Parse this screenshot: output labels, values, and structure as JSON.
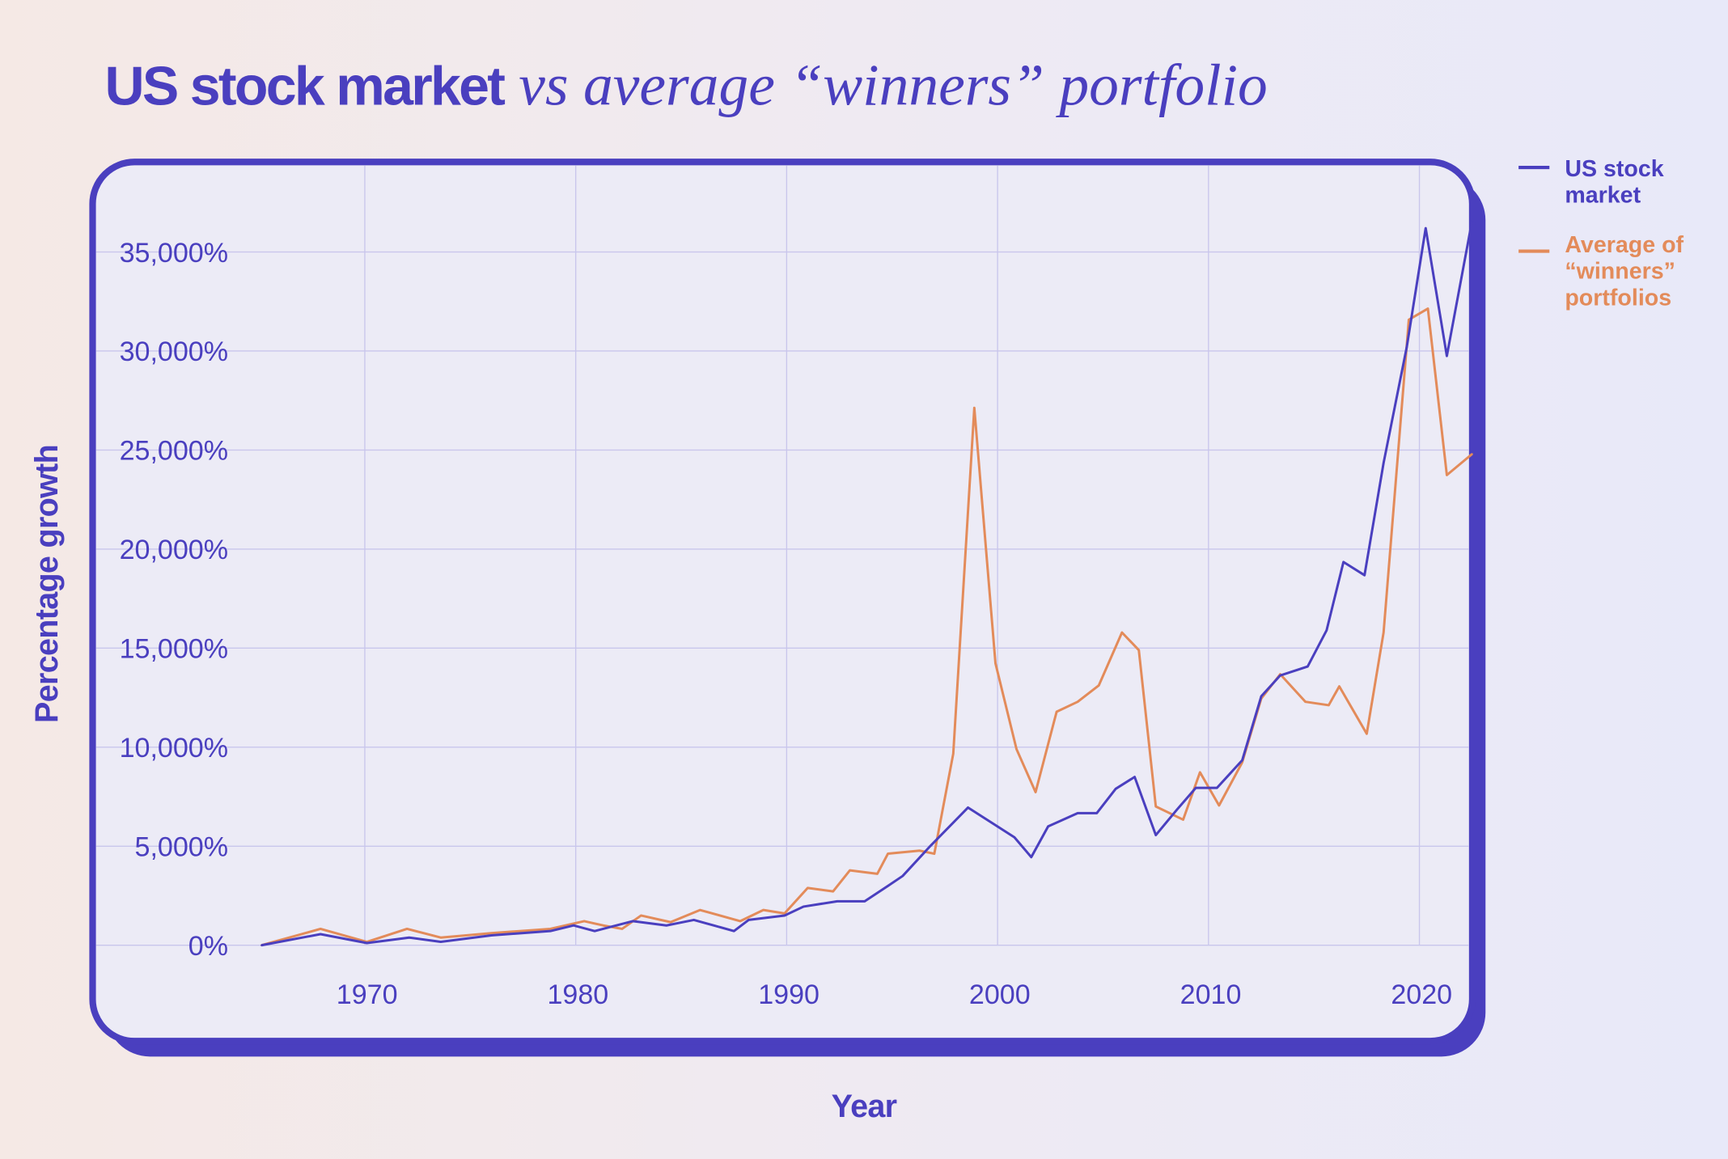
{
  "chart_data": {
    "type": "line",
    "title": "US stock market",
    "title_italic": "vs average “winners” portfolio",
    "xlabel": "Year",
    "ylabel": "Percentage growth",
    "xlim": [
      1965,
      2022.5
    ],
    "ylim": [
      0,
      37000
    ],
    "x_ticks": [
      "1970",
      "1980",
      "1990",
      "2000",
      "2010",
      "2020"
    ],
    "x_tick_values": [
      1970,
      1980,
      1990,
      2000,
      2010,
      2020
    ],
    "y_ticks": [
      "0%",
      "5,000%",
      "10,000%",
      "15,000%",
      "20,000%",
      "25,000%",
      "30,000%",
      "35,000%"
    ],
    "y_tick_values": [
      0,
      5000,
      10000,
      15000,
      20000,
      25000,
      30000,
      35000
    ],
    "grid": true,
    "legend_position": "right",
    "series": [
      {
        "name": "US stock market",
        "color": "#4a3fbf",
        "x": [
          1965.1,
          1967.9,
          1970.1,
          1972.1,
          1973.6,
          1976.0,
          1978.8,
          1979.9,
          1980.9,
          1982.7,
          1984.3,
          1985.6,
          1987.5,
          1988.2,
          1989.9,
          1990.8,
          1992.4,
          1993.7,
          1994.8,
          1995.5,
          1996.8,
          1998.6,
          2000.8,
          2001.6,
          2002.4,
          2003.8,
          2004.7,
          2005.6,
          2006.5,
          2007.5,
          2008.5,
          2009.4,
          2010.4,
          2011.6,
          2012.5,
          2013.4,
          2014.7,
          2015.6,
          2016.4,
          2017.4,
          2018.3,
          2019.4,
          2020.3,
          2021.3,
          2022.5
        ],
        "y": [
          0,
          560,
          110,
          390,
          170,
          500,
          720,
          1000,
          720,
          1220,
          1000,
          1280,
          720,
          1280,
          1500,
          1950,
          2220,
          2220,
          3000,
          3500,
          5000,
          6950,
          5450,
          4450,
          6000,
          6670,
          6670,
          7900,
          8500,
          5560,
          6840,
          7950,
          7950,
          9340,
          12570,
          13620,
          14070,
          15900,
          19350,
          18680,
          24350,
          30190,
          36200,
          29750,
          36580
        ]
      },
      {
        "name": "Average of “winners” portfolios",
        "color": "#e38b5a",
        "x": [
          1965.1,
          1967.9,
          1970.1,
          1972.0,
          1973.6,
          1976.0,
          1978.8,
          1980.4,
          1981.3,
          1982.2,
          1983.1,
          1984.5,
          1985.9,
          1987.8,
          1988.9,
          1989.9,
          1991.0,
          1992.2,
          1993.0,
          1994.3,
          1994.8,
          1996.3,
          1997.0,
          1997.9,
          1998.9,
          1999.9,
          2000.9,
          2001.8,
          2002.8,
          2003.8,
          2004.8,
          2005.9,
          2006.7,
          2007.5,
          2008.8,
          2009.6,
          2010.5,
          2011.6,
          2012.5,
          2013.4,
          2014.6,
          2015.7,
          2016.2,
          2017.5,
          2018.3,
          2019.5,
          2020.4,
          2021.3,
          2022.5
        ],
        "y": [
          0,
          830,
          170,
          830,
          390,
          610,
          830,
          1220,
          1000,
          830,
          1500,
          1170,
          1780,
          1220,
          1780,
          1610,
          2890,
          2720,
          3780,
          3610,
          4620,
          4780,
          4620,
          9670,
          27130,
          14230,
          9900,
          7730,
          11790,
          12290,
          13120,
          15790,
          14900,
          7010,
          6340,
          8730,
          7060,
          9230,
          12450,
          13680,
          12290,
          12120,
          13070,
          10680,
          15790,
          31580,
          32140,
          23740,
          24800
        ]
      }
    ]
  }
}
